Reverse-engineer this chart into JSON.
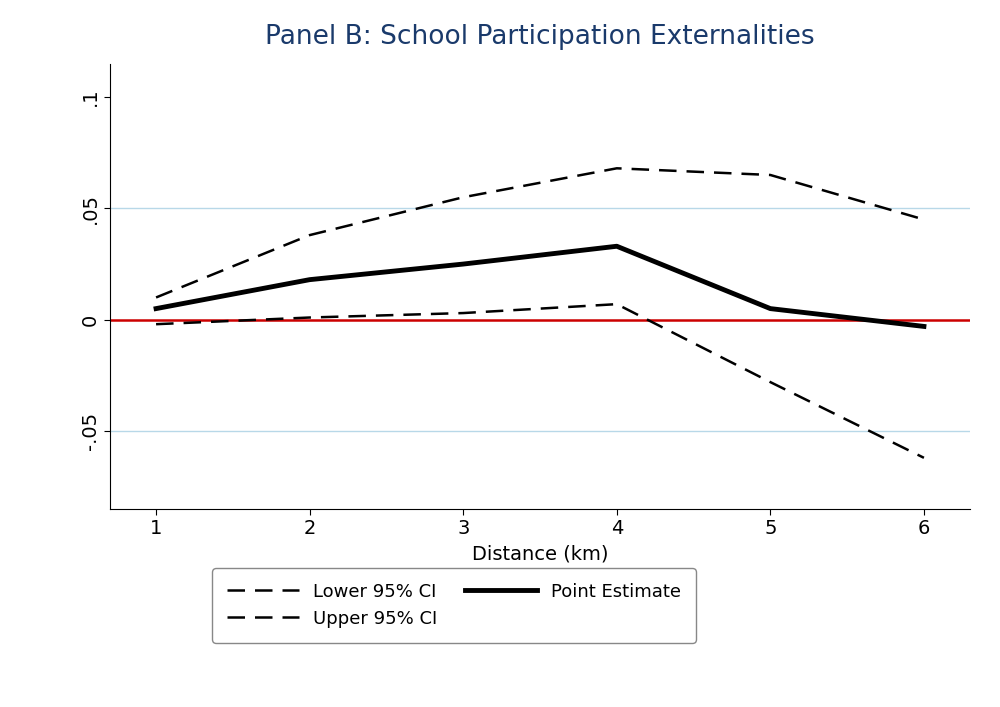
{
  "title": "Panel B: School Participation Externalities",
  "xlabel": "Distance (km)",
  "x": [
    1,
    2,
    3,
    4,
    5,
    6
  ],
  "point_estimate": [
    0.005,
    0.018,
    0.025,
    0.033,
    0.005,
    -0.003
  ],
  "upper_ci": [
    0.01,
    0.038,
    0.055,
    0.068,
    0.065,
    0.045
  ],
  "lower_ci": [
    -0.002,
    0.001,
    0.003,
    0.007,
    -0.028,
    -0.062
  ],
  "ylim": [
    -0.085,
    0.115
  ],
  "yticks": [
    -0.05,
    0,
    0.05,
    0.1
  ],
  "ytick_labels": [
    "-.05",
    "0",
    ".05",
    ".1"
  ],
  "xticks": [
    1,
    2,
    3,
    4,
    5,
    6
  ],
  "grid_ticks": [
    0.05,
    -0.05
  ],
  "zero_line_color": "#cc0000",
  "grid_color": "#b8d8e8",
  "point_color": "#000000",
  "ci_color": "#000000",
  "background_color": "#ffffff",
  "title_color": "#1a3a6b",
  "legend_labels": [
    "Lower 95% CI",
    "Upper 95% CI",
    "Point Estimate"
  ],
  "title_fontsize": 19,
  "label_fontsize": 14,
  "tick_fontsize": 14,
  "legend_fontsize": 13
}
